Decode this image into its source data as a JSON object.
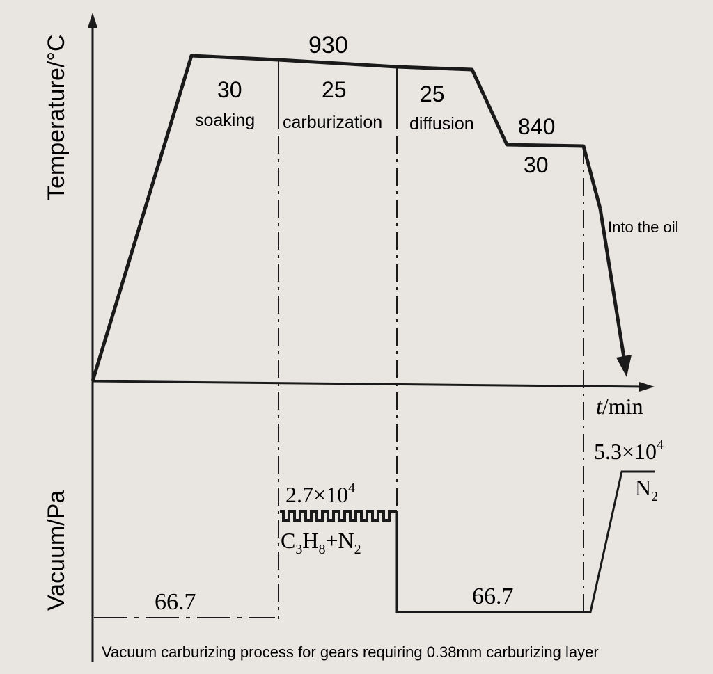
{
  "axes": {
    "temperature_label": "Temperature/°C",
    "vacuum_label": "Vacuum/Pa",
    "time_label_var": "t",
    "time_label_unit": "/min"
  },
  "temperature": {
    "peak": "930",
    "lower": "840",
    "stages": [
      {
        "duration": "30",
        "name": "soaking"
      },
      {
        "duration": "25",
        "name": "carburization"
      },
      {
        "duration": "25",
        "name": "diffusion"
      }
    ],
    "lower_hold": "30",
    "quench": "Into the oil"
  },
  "vacuum": {
    "low_left": "66.7",
    "low_right": "66.7",
    "carb_pressure": {
      "base": "2.7×10",
      "exp": "4"
    },
    "carb_gas": {
      "c": "C",
      "c_sub": "3",
      "h": "H",
      "h_sub": "8",
      "plus": "+N",
      "n_sub": "2"
    },
    "fill_pressure": {
      "base": "5.3×10",
      "exp": "4"
    },
    "fill_gas": {
      "n": "N",
      "n_sub": "2"
    }
  },
  "caption": "Vacuum carburizing process for gears requiring 0.38mm carburizing layer"
}
